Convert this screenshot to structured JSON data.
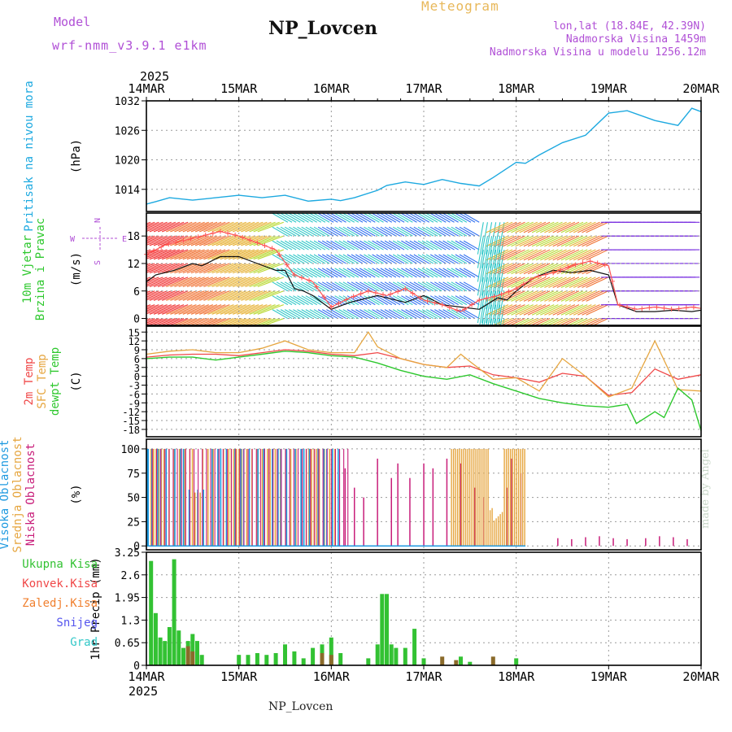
{
  "header": {
    "model_label": "Model",
    "model_run": "wrf-nmm_v3.9.1 e1km",
    "station_title": "NP_Lovcen",
    "product": "Meteogram",
    "coords": "lon,lat (18.84E, 42.39N)",
    "elevation": "Nadmorska Visina 1459m",
    "model_elevation": "Nadmorska Visina u modelu 1256.12m"
  },
  "footer": {
    "station": "NP_Lovcen",
    "credit": "made by Angel"
  },
  "colors": {
    "pressure": "#1da9e0",
    "temp2m": "#f04848",
    "sfc_temp": "#e6a640",
    "dewpoint": "#2ec82e",
    "high_cloud": "#1f9ae0",
    "mid_cloud": "#e6a640",
    "low_cloud": "#c81e7a",
    "total_precip": "#33c233",
    "conv_precip": "#f04848",
    "frozen_precip": "#f08030",
    "snow": "#5555ee",
    "graupel": "#33c8c8",
    "wind_speed": "#111111",
    "wind_gust": "#ff5555"
  },
  "chart_data": [
    {
      "type": "line",
      "panel": "pressure",
      "year": "2025",
      "x_ticks": [
        "14MAR",
        "15MAR",
        "16MAR",
        "17MAR",
        "18MAR",
        "19MAR",
        "20MAR"
      ],
      "ylabel_lines": [
        "Pritisak na nivou mora"
      ],
      "unit": "(hPa)",
      "y_ticks": [
        1014,
        1020,
        1026,
        1032
      ],
      "ylim": [
        1009.5,
        1032
      ],
      "grid": true,
      "series": [
        {
          "name": "Pritisak na nivou mora",
          "x": [
            0,
            0.1,
            0.25,
            0.5,
            0.75,
            1.0,
            1.25,
            1.5,
            1.75,
            2.0,
            2.1,
            2.25,
            2.5,
            2.6,
            2.8,
            3.0,
            3.2,
            3.4,
            3.6,
            3.75,
            4.0,
            4.1,
            4.25,
            4.5,
            4.75,
            5.0,
            5.2,
            5.5,
            5.75,
            5.9,
            6.0
          ],
          "values": [
            1011.0,
            1011.5,
            1012.3,
            1011.8,
            1012.3,
            1012.8,
            1012.3,
            1012.8,
            1011.6,
            1012.0,
            1011.7,
            1012.3,
            1013.8,
            1014.8,
            1015.5,
            1015.0,
            1016.0,
            1015.2,
            1014.7,
            1016.4,
            1019.5,
            1019.3,
            1021.0,
            1023.5,
            1025.0,
            1029.5,
            1030.0,
            1028.0,
            1027.0,
            1030.5,
            1029.8
          ]
        }
      ]
    },
    {
      "type": "line",
      "panel": "wind",
      "ylabel_lines": [
        "10m Vjetar",
        "Brzina i Pravac"
      ],
      "unit": "(m/s)",
      "compass": {
        "n": "N",
        "s": "S",
        "w": "W",
        "e": "E"
      },
      "y_ticks": [
        0,
        6,
        12,
        18
      ],
      "ylim": [
        -1.5,
        23
      ],
      "grid": true,
      "barbs": {
        "rows": [
          0,
          3,
          6,
          9,
          12,
          15,
          18,
          21
        ]
      },
      "series": [
        {
          "name": "speed",
          "x": [
            0,
            0.1,
            0.3,
            0.5,
            0.6,
            0.8,
            1.0,
            1.2,
            1.4,
            1.5,
            1.6,
            1.7,
            1.8,
            2.0,
            2.2,
            2.5,
            2.8,
            3.0,
            3.2,
            3.4,
            3.6,
            3.8,
            3.9,
            4.0,
            4.2,
            4.4,
            4.6,
            4.8,
            5.0,
            5.1,
            5.3,
            5.5,
            5.7,
            5.9,
            6.0
          ],
          "values": [
            8,
            9.5,
            10.5,
            12,
            11.5,
            13.5,
            13.5,
            12,
            10.5,
            10.5,
            6.5,
            6.0,
            5.0,
            2.0,
            3.5,
            5.0,
            3.5,
            5.0,
            3.0,
            2.5,
            2.0,
            4.5,
            4.0,
            6.0,
            9.0,
            10.5,
            10.0,
            10.5,
            9.5,
            3.0,
            1.5,
            1.5,
            1.8,
            1.5,
            1.8
          ]
        },
        {
          "name": "gust",
          "x": [
            0,
            0.2,
            0.4,
            0.6,
            0.8,
            1.0,
            1.2,
            1.4,
            1.6,
            1.8,
            2.0,
            2.2,
            2.4,
            2.6,
            2.8,
            3.0,
            3.2,
            3.4,
            3.6,
            3.8,
            4.0,
            4.2,
            4.4,
            4.6,
            4.8,
            5.0,
            5.1,
            5.3,
            5.5,
            5.7,
            5.9,
            6.0
          ],
          "values": [
            14,
            16,
            17,
            18,
            19,
            18,
            16.5,
            15,
            9.5,
            8,
            2.5,
            4.5,
            6,
            5,
            6.5,
            4,
            3,
            1.5,
            4,
            5,
            6.5,
            9,
            10,
            11.5,
            12.5,
            11.5,
            3,
            2,
            2.5,
            2,
            2.5,
            2.2
          ]
        }
      ]
    },
    {
      "type": "line",
      "panel": "temperature",
      "ylabel_lines": [
        "2m Temp",
        "SFC Temp",
        "dewpt Temp"
      ],
      "unit": "(C)",
      "y_ticks": [
        -18,
        -15,
        -12,
        -9,
        -6,
        -3,
        0,
        3,
        6,
        9,
        12,
        15
      ],
      "ylim": [
        -20.5,
        17
      ],
      "grid": true,
      "series": [
        {
          "name": "2m Temp",
          "x": [
            0,
            0.25,
            0.5,
            0.75,
            1.0,
            1.25,
            1.5,
            1.75,
            2.0,
            2.25,
            2.5,
            2.75,
            3.0,
            3.25,
            3.5,
            3.75,
            4.0,
            4.25,
            4.5,
            4.75,
            5.0,
            5.25,
            5.5,
            5.75,
            6.0
          ],
          "values": [
            6.5,
            7.2,
            7.5,
            7.5,
            7.0,
            8.0,
            9.0,
            8.5,
            7.5,
            7.0,
            8.0,
            6.0,
            4.0,
            3.0,
            3.5,
            0.5,
            -0.5,
            -2.0,
            1.0,
            0.0,
            -6.5,
            -5.5,
            2.5,
            -1.0,
            0.5
          ]
        },
        {
          "name": "SFC Temp",
          "x": [
            0,
            0.25,
            0.5,
            0.75,
            1.0,
            1.25,
            1.5,
            1.75,
            2.0,
            2.25,
            2.4,
            2.5,
            2.75,
            3.0,
            3.25,
            3.4,
            3.5,
            3.75,
            4.0,
            4.25,
            4.5,
            4.75,
            5.0,
            5.25,
            5.5,
            5.75,
            6.0
          ],
          "values": [
            7.5,
            8.5,
            9.0,
            8.0,
            8.0,
            9.5,
            12.0,
            9.0,
            8.0,
            8.0,
            15.0,
            10.0,
            6.0,
            4.0,
            3.0,
            7.5,
            5.0,
            -1.0,
            -0.5,
            -5.0,
            6.0,
            0.0,
            -7.0,
            -4.0,
            12.0,
            -4.5,
            -5.0
          ]
        },
        {
          "name": "dewpt Temp",
          "x": [
            0,
            0.25,
            0.5,
            0.75,
            1.0,
            1.25,
            1.5,
            1.75,
            2.0,
            2.25,
            2.5,
            2.75,
            3.0,
            3.25,
            3.5,
            3.75,
            4.0,
            4.25,
            4.5,
            4.75,
            5.0,
            5.2,
            5.3,
            5.5,
            5.6,
            5.75,
            5.9,
            6.0
          ],
          "values": [
            6.0,
            6.5,
            6.5,
            5.5,
            6.5,
            7.5,
            8.5,
            8.0,
            7.0,
            6.5,
            4.5,
            2.0,
            0.0,
            -1.0,
            0.5,
            -2.5,
            -5.0,
            -7.5,
            -9.0,
            -10.0,
            -10.5,
            -9.5,
            -16.0,
            -12.0,
            -14.0,
            -4.0,
            -8.0,
            -18.5
          ]
        }
      ]
    },
    {
      "type": "bar",
      "panel": "cloud",
      "ylabel_lines": [
        "Visoka Oblacnost",
        "Srednja Oblacnost",
        "Niska Oblacnost"
      ],
      "unit": "(%)",
      "y_ticks": [
        0,
        25,
        50,
        75,
        100
      ],
      "ylim": [
        -4,
        110
      ],
      "grid": true,
      "series": [
        {
          "name": "Visoka Oblacnost",
          "x_range": [
            0.0,
            2.1
          ],
          "level": 100
        },
        {
          "name": "Srednja Oblacnost",
          "x_range": [
            0.0,
            4.1
          ],
          "level": 100
        },
        {
          "name": "Niska Oblacnost",
          "x_range": [
            0.0,
            6.0
          ],
          "level": 100
        }
      ]
    },
    {
      "type": "bar",
      "panel": "precipitation",
      "ylabel_lines": [
        "Ukupna Kisa",
        "Konvek.Kisa",
        "Zaledj.Kisa",
        "Snijeg",
        "Grad"
      ],
      "unit": "1hr Precip (mm)",
      "y_ticks": [
        0,
        0.65,
        1.3,
        1.95,
        2.6,
        3.25
      ],
      "ylim": [
        0,
        3.25
      ],
      "grid": true,
      "series": [
        {
          "name": "Ukupna Kisa",
          "x": [
            0.05,
            0.1,
            0.15,
            0.2,
            0.25,
            0.3,
            0.35,
            0.4,
            0.45,
            0.5,
            0.55,
            0.6,
            1.0,
            1.1,
            1.2,
            1.3,
            1.4,
            1.5,
            1.6,
            1.7,
            1.8,
            1.9,
            2.0,
            2.1,
            2.4,
            2.5,
            2.55,
            2.6,
            2.65,
            2.7,
            2.8,
            2.9,
            3.0,
            3.4,
            3.5,
            4.0
          ],
          "values": [
            3.0,
            1.5,
            0.8,
            0.7,
            1.1,
            3.05,
            1.0,
            0.5,
            0.7,
            0.9,
            0.7,
            0.3,
            0.3,
            0.3,
            0.35,
            0.3,
            0.35,
            0.6,
            0.4,
            0.2,
            0.5,
            0.6,
            0.8,
            0.35,
            0.2,
            0.6,
            2.05,
            2.05,
            0.6,
            0.5,
            0.5,
            1.05,
            0.2,
            0.25,
            0.1,
            0.2
          ]
        }
      ]
    }
  ]
}
